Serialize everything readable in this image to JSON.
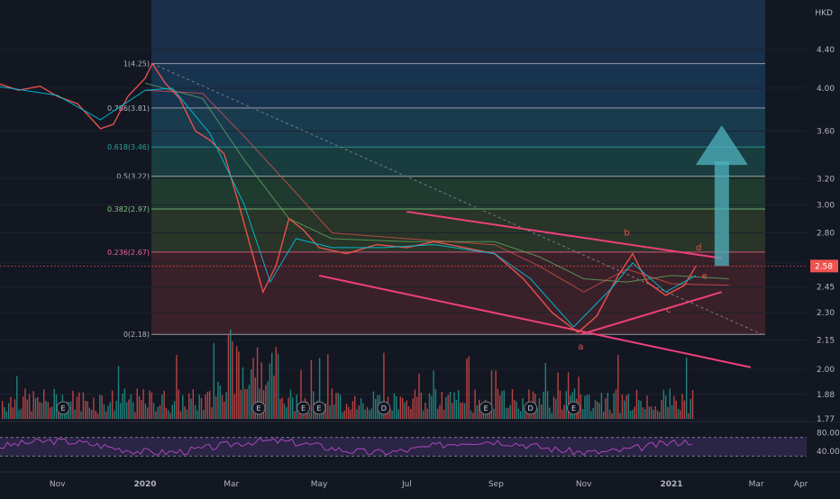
{
  "header": {
    "currency": "HKD"
  },
  "chart_data": {
    "type": "line",
    "price_axis": {
      "ticks": [
        4.4,
        4.0,
        3.6,
        3.2,
        3.0,
        2.8,
        2.6,
        2.45,
        2.3,
        2.15,
        2.0,
        1.88,
        1.77
      ],
      "tick_labels": [
        "4.40",
        "4.00",
        "3.60",
        "3.20",
        "3.00",
        "2.80",
        "2.60",
        "2.45",
        "2.30",
        "2.15",
        "2.00",
        "1.88",
        "1.77"
      ],
      "scale": "log",
      "current_price": 2.58,
      "current_price_label": "2.58",
      "current_price_color": "#ef5350"
    },
    "time_axis": {
      "labels": [
        "Nov",
        "2020",
        "Mar",
        "May",
        "Jul",
        "Sep",
        "Nov",
        "2021",
        "Mar",
        "Apr"
      ],
      "dates": [
        "2019-11",
        "2020-01",
        "2020-03",
        "2020-05",
        "2020-07",
        "2020-09",
        "2020-11",
        "2021-01",
        "2021-03",
        "2021-04"
      ]
    },
    "fibonacci": {
      "high": 4.25,
      "low": 2.18,
      "levels": [
        {
          "ratio": 1,
          "price": 4.25,
          "label": "1(4.25)",
          "color": "#b2b5be"
        },
        {
          "ratio": 0.786,
          "price": 3.81,
          "label": "0.786(3.81)",
          "color": "#b2b5be"
        },
        {
          "ratio": 0.618,
          "price": 3.46,
          "label": "0.618(3.46)",
          "color": "#26a69a"
        },
        {
          "ratio": 0.5,
          "price": 3.22,
          "label": "0.5(3.22)",
          "color": "#b2b5be"
        },
        {
          "ratio": 0.382,
          "price": 2.97,
          "label": "0.382(2.97)",
          "color": "#81c784"
        },
        {
          "ratio": 0.236,
          "price": 2.67,
          "label": "0.236(2.67)",
          "color": "#f06292"
        },
        {
          "ratio": 0,
          "price": 2.18,
          "label": "0(2.18)",
          "color": "#b2b5be"
        }
      ]
    },
    "series": [
      {
        "name": "Price",
        "color": "#ef5350",
        "points": [
          [
            "2019-09-20",
            4.05
          ],
          [
            "2019-10-05",
            3.98
          ],
          [
            "2019-10-20",
            4.02
          ],
          [
            "2019-11-01",
            3.92
          ],
          [
            "2019-11-15",
            3.85
          ],
          [
            "2019-12-01",
            3.62
          ],
          [
            "2019-12-10",
            3.66
          ],
          [
            "2019-12-20",
            3.92
          ],
          [
            "2020-01-01",
            4.1
          ],
          [
            "2020-01-06",
            4.25
          ],
          [
            "2020-01-15",
            4.05
          ],
          [
            "2020-01-25",
            3.9
          ],
          [
            "2020-02-05",
            3.6
          ],
          [
            "2020-02-15",
            3.52
          ],
          [
            "2020-02-25",
            3.4
          ],
          [
            "2020-03-05",
            3.05
          ],
          [
            "2020-03-15",
            2.68
          ],
          [
            "2020-03-23",
            2.42
          ],
          [
            "2020-04-01",
            2.58
          ],
          [
            "2020-04-10",
            2.9
          ],
          [
            "2020-04-20",
            2.82
          ],
          [
            "2020-05-01",
            2.7
          ],
          [
            "2020-05-20",
            2.66
          ],
          [
            "2020-06-10",
            2.72
          ],
          [
            "2020-07-01",
            2.7
          ],
          [
            "2020-07-20",
            2.74
          ],
          [
            "2020-08-10",
            2.7
          ],
          [
            "2020-08-31",
            2.66
          ],
          [
            "2020-09-20",
            2.5
          ],
          [
            "2020-10-10",
            2.3
          ],
          [
            "2020-10-28",
            2.19
          ],
          [
            "2020-11-10",
            2.28
          ],
          [
            "2020-11-25",
            2.52
          ],
          [
            "2020-12-05",
            2.66
          ],
          [
            "2020-12-15",
            2.48
          ],
          [
            "2020-12-28",
            2.4
          ],
          [
            "2021-01-10",
            2.46
          ],
          [
            "2021-01-18",
            2.58
          ]
        ]
      },
      {
        "name": "MA",
        "color": "#00bcd4",
        "points": [
          [
            "2019-09-20",
            4.02
          ],
          [
            "2019-11-01",
            3.93
          ],
          [
            "2019-12-01",
            3.7
          ],
          [
            "2020-01-01",
            3.98
          ],
          [
            "2020-01-20",
            4.0
          ],
          [
            "2020-02-15",
            3.58
          ],
          [
            "2020-03-10",
            3.0
          ],
          [
            "2020-03-28",
            2.48
          ],
          [
            "2020-04-15",
            2.76
          ],
          [
            "2020-05-10",
            2.7
          ],
          [
            "2020-06-15",
            2.7
          ],
          [
            "2020-07-20",
            2.72
          ],
          [
            "2020-08-31",
            2.66
          ],
          [
            "2020-09-25",
            2.5
          ],
          [
            "2020-10-25",
            2.22
          ],
          [
            "2020-11-20",
            2.44
          ],
          [
            "2020-12-05",
            2.6
          ],
          [
            "2020-12-28",
            2.42
          ],
          [
            "2021-01-18",
            2.52
          ]
        ]
      },
      {
        "name": "Cloud A",
        "color": "#66bb6a",
        "points": [
          [
            "2020-01-01",
            4.05
          ],
          [
            "2020-02-10",
            3.9
          ],
          [
            "2020-03-10",
            3.35
          ],
          [
            "2020-04-10",
            2.9
          ],
          [
            "2020-05-10",
            2.76
          ],
          [
            "2020-07-01",
            2.74
          ],
          [
            "2020-08-31",
            2.74
          ],
          [
            "2020-10-01",
            2.64
          ],
          [
            "2020-11-01",
            2.5
          ],
          [
            "2020-12-01",
            2.48
          ],
          [
            "2021-01-01",
            2.52
          ],
          [
            "2021-02-10",
            2.5
          ]
        ]
      },
      {
        "name": "Cloud B",
        "color": "#ef5350",
        "points": [
          [
            "2020-01-01",
            3.98
          ],
          [
            "2020-02-10",
            3.95
          ],
          [
            "2020-03-10",
            3.55
          ],
          [
            "2020-04-10",
            3.15
          ],
          [
            "2020-05-10",
            2.8
          ],
          [
            "2020-07-01",
            2.76
          ],
          [
            "2020-08-31",
            2.72
          ],
          [
            "2020-10-01",
            2.58
          ],
          [
            "2020-11-01",
            2.42
          ],
          [
            "2020-12-01",
            2.56
          ],
          [
            "2021-01-01",
            2.47
          ],
          [
            "2021-02-10",
            2.46
          ]
        ]
      }
    ],
    "wave_labels": [
      {
        "text": "a",
        "date": "2020-10-30",
        "price": 2.1,
        "color": "#ef5350"
      },
      {
        "text": "b",
        "date": "2020-12-01",
        "price": 2.78,
        "color": "#ef5350"
      },
      {
        "text": "c",
        "date": "2020-12-30",
        "price": 2.3,
        "color": "#ef5350"
      },
      {
        "text": "d",
        "date": "2021-01-20",
        "price": 2.68,
        "color": "#ef5350"
      },
      {
        "text": "e",
        "date": "2021-01-24",
        "price": 2.5,
        "color": "#ef5350"
      }
    ],
    "trendlines": [
      {
        "from": [
          "2020-07-01",
          2.95
        ],
        "to": [
          "2021-02-05",
          2.63
        ],
        "color": "#ec407a"
      },
      {
        "from": [
          "2020-05-01",
          2.52
        ],
        "to": [
          "2021-02-25",
          2.01
        ],
        "color": "#ec407a"
      },
      {
        "from": [
          "2020-10-30",
          2.18
        ],
        "to": [
          "2021-02-05",
          2.42
        ],
        "color": "#ec407a"
      },
      {
        "from": [
          "2020-01-06",
          4.25
        ],
        "to": [
          "2021-03-05",
          2.18
        ],
        "color": "#787b86",
        "dashed": true
      }
    ],
    "arrow": {
      "date": "2021-02-05",
      "from_price": 2.58,
      "to_price": 3.65,
      "color": "#4fb3bf"
    },
    "events": [
      {
        "date": "2019-11-05",
        "label": "E"
      },
      {
        "date": "2020-03-20",
        "label": "E"
      },
      {
        "date": "2020-04-20",
        "label": "E"
      },
      {
        "date": "2020-05-01",
        "label": "E"
      },
      {
        "date": "2020-06-15",
        "label": "D"
      },
      {
        "date": "2020-08-25",
        "label": "E"
      },
      {
        "date": "2020-09-25",
        "label": "D"
      },
      {
        "date": "2020-10-25",
        "label": "E"
      }
    ],
    "volume": {
      "color_up": "#26a69a",
      "color_down": "#ef5350"
    },
    "rsi": {
      "ticks": [
        80,
        40
      ],
      "tick_labels": [
        "80.00",
        "40.00"
      ],
      "upper": 70,
      "lower": 30,
      "color": "#ab47bc"
    }
  }
}
